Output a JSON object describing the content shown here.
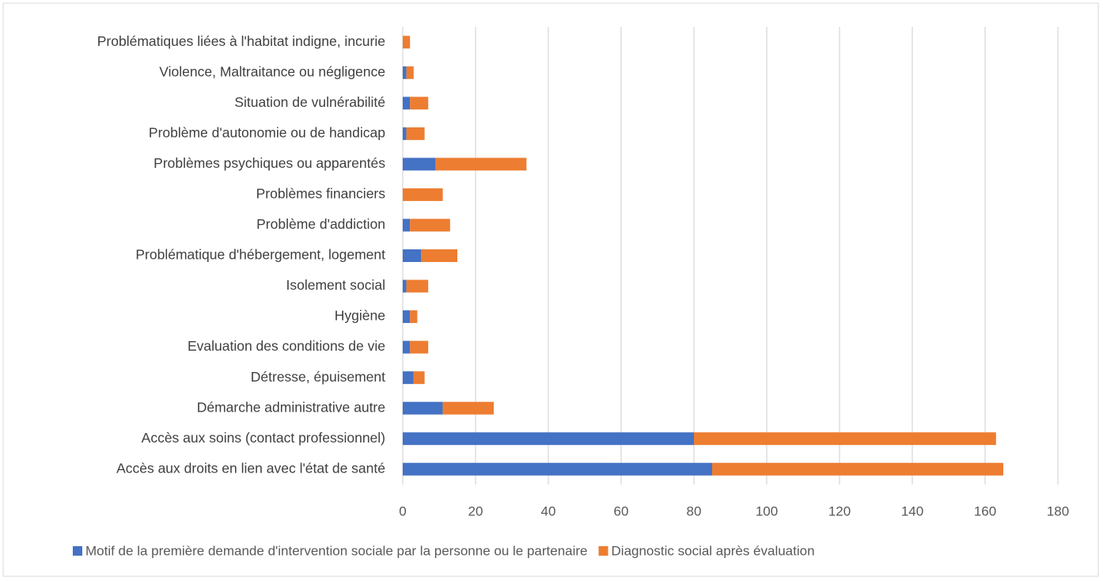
{
  "chart_data": {
    "type": "bar",
    "orientation": "horizontal",
    "stacked": true,
    "categories": [
      "Problématiques liées à l'habitat indigne, incurie",
      "Violence, Maltraitance ou négligence",
      "Situation de vulnérabilité",
      "Problème d'autonomie ou de handicap",
      "Problèmes psychiques ou apparentés",
      "Problèmes financiers",
      "Problème d'addiction",
      "Problématique d'hébergement, logement",
      "Isolement social",
      "Hygiène",
      "Evaluation des conditions de vie",
      "Détresse, épuisement",
      "Démarche administrative autre",
      "Accès aux soins (contact professionnel)",
      "Accès aux droits en lien avec l'état de santé"
    ],
    "series": [
      {
        "name": "Motif de la première demande d'intervention sociale par la personne ou le partenaire",
        "color": "#4472c4",
        "values": [
          0,
          1,
          2,
          1,
          9,
          0,
          2,
          5,
          1,
          2,
          2,
          3,
          11,
          80,
          85
        ]
      },
      {
        "name": "Diagnostic social après évaluation",
        "color": "#ed7d31",
        "values": [
          2,
          2,
          5,
          5,
          25,
          11,
          11,
          10,
          6,
          2,
          5,
          3,
          14,
          83,
          80
        ]
      }
    ],
    "xlim": [
      0,
      180
    ],
    "xticks": [
      0,
      20,
      40,
      60,
      80,
      100,
      120,
      140,
      160,
      180
    ],
    "grid": true,
    "legend": "bottom"
  }
}
